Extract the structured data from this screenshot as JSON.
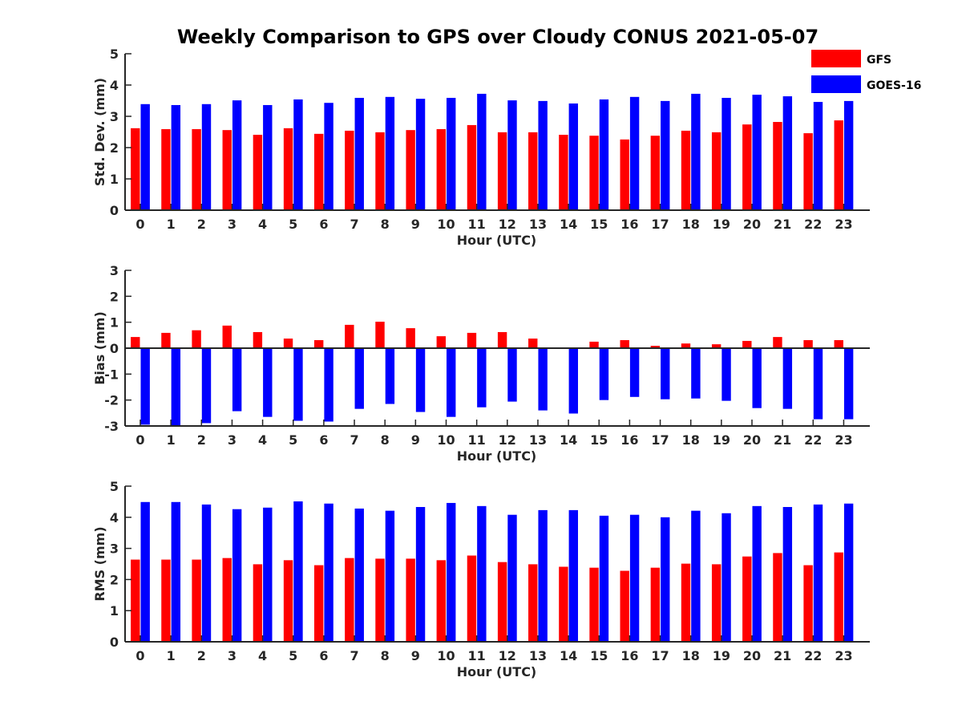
{
  "title": "Weekly Comparison to GPS over Cloudy CONUS 2021-05-07",
  "legend": {
    "entries": [
      {
        "label": "GFS",
        "color": "#ff0000"
      },
      {
        "label": "GOES-16",
        "color": "#0000ff"
      }
    ]
  },
  "chart_data": [
    {
      "type": "bar",
      "title": "",
      "xlabel": "Hour (UTC)",
      "ylabel": "Std. Dev. (mm)",
      "ylim": [
        0,
        5
      ],
      "yticks": [
        "0",
        "1",
        "2",
        "3",
        "4",
        "5"
      ],
      "categories": [
        "0",
        "1",
        "2",
        "3",
        "4",
        "5",
        "6",
        "7",
        "8",
        "9",
        "10",
        "11",
        "12",
        "13",
        "14",
        "15",
        "16",
        "17",
        "18",
        "19",
        "20",
        "21",
        "22",
        "23"
      ],
      "series": [
        {
          "name": "GFS",
          "color": "#ff0000",
          "values": [
            2.62,
            2.59,
            2.59,
            2.56,
            2.41,
            2.62,
            2.44,
            2.54,
            2.49,
            2.56,
            2.59,
            2.72,
            2.49,
            2.49,
            2.41,
            2.38,
            2.26,
            2.38,
            2.54,
            2.49,
            2.74,
            2.82,
            2.46,
            2.87
          ]
        },
        {
          "name": "GOES-16",
          "color": "#0000ff",
          "values": [
            3.39,
            3.36,
            3.39,
            3.51,
            3.36,
            3.54,
            3.43,
            3.59,
            3.62,
            3.56,
            3.59,
            3.72,
            3.51,
            3.49,
            3.41,
            3.54,
            3.62,
            3.49,
            3.72,
            3.59,
            3.69,
            3.64,
            3.46,
            3.49
          ]
        }
      ],
      "grid": false
    },
    {
      "type": "bar",
      "title": "",
      "xlabel": "Hour (UTC)",
      "ylabel": "Bias (mm)",
      "ylim": [
        -3,
        3
      ],
      "yticks": [
        "-3",
        "-2",
        "-1",
        "0",
        "1",
        "2",
        "3"
      ],
      "categories": [
        "0",
        "1",
        "2",
        "3",
        "4",
        "5",
        "6",
        "7",
        "8",
        "9",
        "10",
        "11",
        "12",
        "13",
        "14",
        "15",
        "16",
        "17",
        "18",
        "19",
        "20",
        "21",
        "22",
        "23"
      ],
      "series": [
        {
          "name": "GFS",
          "color": "#ff0000",
          "values": [
            0.43,
            0.59,
            0.69,
            0.87,
            0.62,
            0.37,
            0.31,
            0.9,
            1.02,
            0.77,
            0.46,
            0.59,
            0.62,
            0.37,
            0.03,
            0.25,
            0.31,
            0.09,
            0.18,
            0.15,
            0.28,
            0.43,
            0.31,
            0.31
          ]
        },
        {
          "name": "GOES-16",
          "color": "#0000ff",
          "values": [
            -2.95,
            -2.98,
            -2.89,
            -2.43,
            -2.65,
            -2.8,
            -2.83,
            -2.34,
            -2.15,
            -2.46,
            -2.65,
            -2.28,
            -2.06,
            -2.4,
            -2.52,
            -2.0,
            -1.88,
            -1.97,
            -1.94,
            -2.03,
            -2.31,
            -2.34,
            -2.74,
            -2.74
          ]
        }
      ],
      "grid": false
    },
    {
      "type": "bar",
      "title": "",
      "xlabel": "Hour (UTC)",
      "ylabel": "RMS (mm)",
      "ylim": [
        0,
        5
      ],
      "yticks": [
        "0",
        "1",
        "2",
        "3",
        "4",
        "5"
      ],
      "categories": [
        "0",
        "1",
        "2",
        "3",
        "4",
        "5",
        "6",
        "7",
        "8",
        "9",
        "10",
        "11",
        "12",
        "13",
        "14",
        "15",
        "16",
        "17",
        "18",
        "19",
        "20",
        "21",
        "22",
        "23"
      ],
      "series": [
        {
          "name": "GFS",
          "color": "#ff0000",
          "values": [
            2.64,
            2.64,
            2.64,
            2.69,
            2.49,
            2.62,
            2.46,
            2.69,
            2.67,
            2.67,
            2.62,
            2.77,
            2.56,
            2.49,
            2.41,
            2.38,
            2.28,
            2.38,
            2.51,
            2.49,
            2.74,
            2.85,
            2.46,
            2.87
          ]
        },
        {
          "name": "GOES-16",
          "color": "#0000ff",
          "values": [
            4.49,
            4.49,
            4.41,
            4.26,
            4.31,
            4.51,
            4.44,
            4.28,
            4.21,
            4.33,
            4.46,
            4.36,
            4.08,
            4.23,
            4.23,
            4.05,
            4.08,
            4.0,
            4.21,
            4.13,
            4.36,
            4.33,
            4.41,
            4.44
          ]
        }
      ],
      "grid": false
    }
  ]
}
